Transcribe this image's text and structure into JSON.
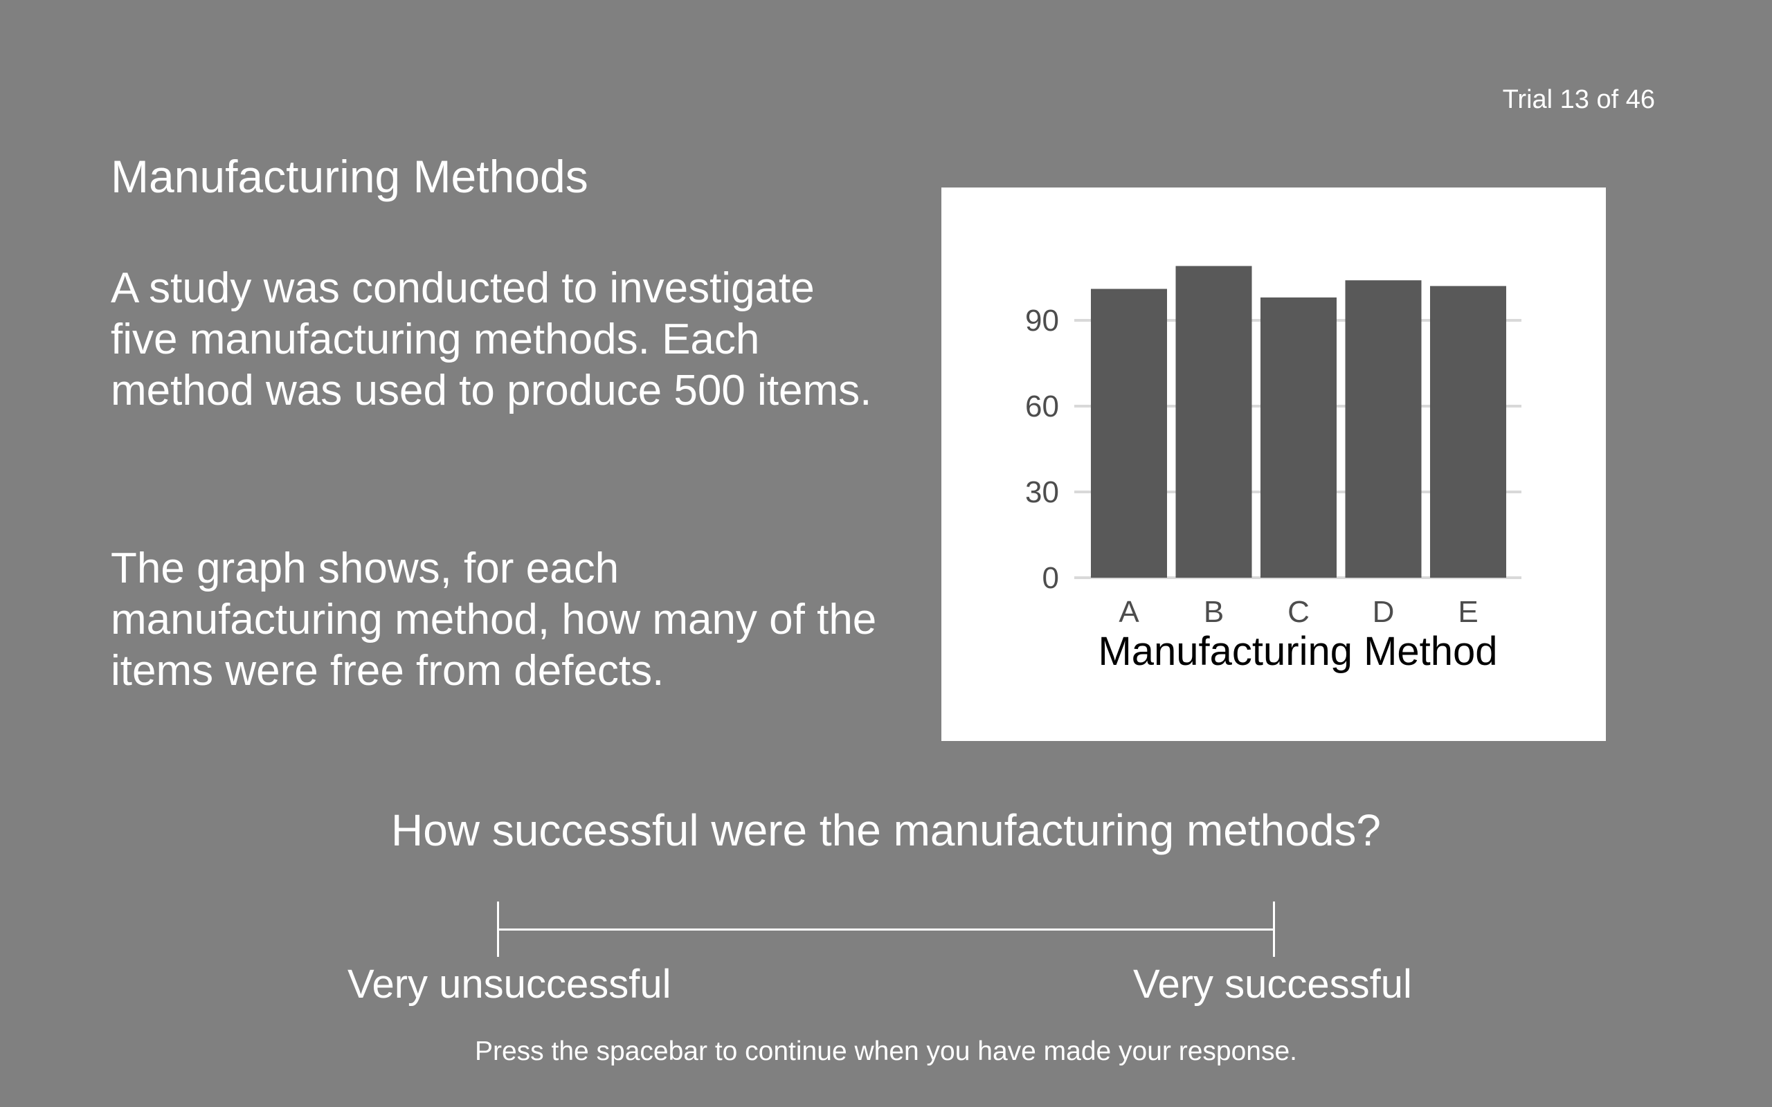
{
  "header": {
    "trial_counter": "Trial 13 of 46"
  },
  "main": {
    "title": "Manufacturing Methods",
    "paragraph_1": "A study was conducted to investigate five manufacturing methods. Each method was used to produce 500 items.",
    "paragraph_2": "The graph shows, for each manufacturing method, how many of the items were free from defects."
  },
  "chart_data": {
    "type": "bar",
    "categories": [
      "A",
      "B",
      "C",
      "D",
      "E"
    ],
    "values": [
      101,
      109,
      98,
      104,
      102
    ],
    "title": "",
    "xlabel": "Manufacturing Method",
    "ylabel": "",
    "ylim": [
      0,
      110
    ],
    "yticks": [
      0,
      30,
      60,
      90
    ],
    "grid": true,
    "bar_color": "#595959",
    "grid_color": "#d9d9d9",
    "tick_color": "#4d4d4d"
  },
  "question": {
    "text": "How successful were the manufacturing methods?"
  },
  "rating_scale": {
    "low_label": "Very unsuccessful",
    "high_label": "Very successful"
  },
  "footer": {
    "instructions": "Press the spacebar to continue when you have made your response."
  },
  "colors": {
    "background": "#808080",
    "text": "#ffffff",
    "chart_background": "#ffffff"
  }
}
